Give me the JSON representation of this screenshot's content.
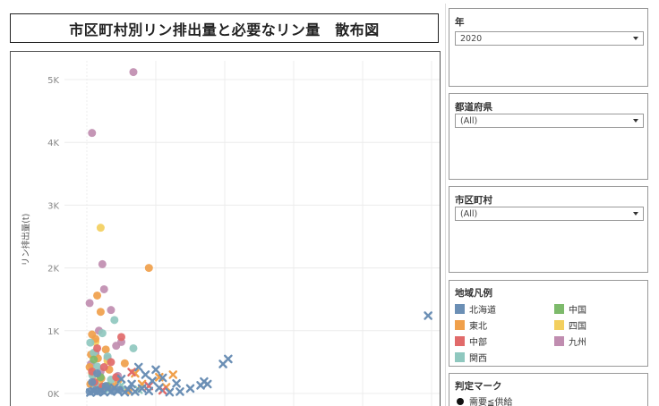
{
  "title": "市区町村別リン排出量と必要なリン量　散布図",
  "filters": {
    "year": {
      "label": "年",
      "value": "2020"
    },
    "prefecture": {
      "label": "都道府県",
      "value": "(All)"
    },
    "municipality": {
      "label": "市区町村",
      "value": "(All)"
    }
  },
  "legend": {
    "title": "地域凡例",
    "items": [
      {
        "label": "北海道",
        "color": "#6b8fb5"
      },
      {
        "label": "中国",
        "color": "#7dba6b"
      },
      {
        "label": "東北",
        "color": "#f0a04b"
      },
      {
        "label": "四国",
        "color": "#f3cf5e"
      },
      {
        "label": "中部",
        "color": "#e16a6a"
      },
      {
        "label": "九州",
        "color": "#c08db0"
      },
      {
        "label": "関西",
        "color": "#8fc8bf"
      }
    ]
  },
  "mark_legend": {
    "title": "判定マーク",
    "items": [
      {
        "label": "需要≦供給",
        "shape": "circle"
      }
    ]
  },
  "chart_data": {
    "type": "scatter",
    "ylabel": "リン排出量(t)",
    "ylim": [
      0,
      5300
    ],
    "yticks": [
      {
        "value": 0,
        "label": "0K"
      },
      {
        "value": 1000,
        "label": "1K"
      },
      {
        "value": 2000,
        "label": "2K"
      },
      {
        "value": 3000,
        "label": "3K"
      },
      {
        "value": 4000,
        "label": "4K"
      },
      {
        "value": 5000,
        "label": "5K"
      }
    ],
    "xlim": [
      0,
      100
    ],
    "xgrid": [
      0,
      20,
      40,
      60,
      80,
      100
    ],
    "series": [
      {
        "name": "九州",
        "color": "#c08db0",
        "points": [
          {
            "x": 13.5,
            "y": 5120,
            "m": "circle"
          },
          {
            "x": 1.5,
            "y": 4150,
            "m": "circle"
          },
          {
            "x": 4.5,
            "y": 2060,
            "m": "circle"
          },
          {
            "x": 5,
            "y": 1660,
            "m": "circle"
          },
          {
            "x": 0.8,
            "y": 1440,
            "m": "circle"
          },
          {
            "x": 7,
            "y": 1330,
            "m": "circle"
          },
          {
            "x": 3.5,
            "y": 1000,
            "m": "circle"
          },
          {
            "x": 10,
            "y": 820,
            "m": "circle"
          },
          {
            "x": 8.5,
            "y": 760,
            "m": "circle"
          },
          {
            "x": 2.5,
            "y": 640,
            "m": "circle"
          },
          {
            "x": 6,
            "y": 560,
            "m": "circle"
          },
          {
            "x": 1.2,
            "y": 470,
            "m": "circle"
          },
          {
            "x": 4,
            "y": 350,
            "m": "circle"
          },
          {
            "x": 9,
            "y": 280,
            "m": "circle"
          },
          {
            "x": 1.8,
            "y": 160,
            "m": "circle"
          },
          {
            "x": 3,
            "y": 90,
            "m": "circle"
          }
        ]
      },
      {
        "name": "四国",
        "color": "#f3cf5e",
        "points": [
          {
            "x": 4,
            "y": 2640,
            "m": "circle"
          },
          {
            "x": 2.5,
            "y": 820,
            "m": "circle"
          },
          {
            "x": 6,
            "y": 520,
            "m": "circle"
          },
          {
            "x": 1.5,
            "y": 320,
            "m": "circle"
          },
          {
            "x": 3.5,
            "y": 190,
            "m": "circle"
          },
          {
            "x": 5,
            "y": 80,
            "m": "circle"
          }
        ]
      },
      {
        "name": "東北",
        "color": "#f0a04b",
        "points": [
          {
            "x": 18,
            "y": 2000,
            "m": "circle"
          },
          {
            "x": 3,
            "y": 1560,
            "m": "circle"
          },
          {
            "x": 4,
            "y": 1300,
            "m": "circle"
          },
          {
            "x": 1.5,
            "y": 940,
            "m": "circle"
          },
          {
            "x": 2.5,
            "y": 870,
            "m": "circle"
          },
          {
            "x": 5.5,
            "y": 700,
            "m": "circle"
          },
          {
            "x": 1.2,
            "y": 620,
            "m": "circle"
          },
          {
            "x": 3.2,
            "y": 560,
            "m": "circle"
          },
          {
            "x": 11,
            "y": 480,
            "m": "circle"
          },
          {
            "x": 0.8,
            "y": 420,
            "m": "circle"
          },
          {
            "x": 6.5,
            "y": 380,
            "m": "circle"
          },
          {
            "x": 2,
            "y": 300,
            "m": "circle"
          },
          {
            "x": 4.2,
            "y": 240,
            "m": "circle"
          },
          {
            "x": 9,
            "y": 200,
            "m": "circle"
          },
          {
            "x": 1,
            "y": 150,
            "m": "circle"
          },
          {
            "x": 7.5,
            "y": 110,
            "m": "circle"
          },
          {
            "x": 3.8,
            "y": 70,
            "m": "circle"
          },
          {
            "x": 12,
            "y": 40,
            "m": "circle"
          },
          {
            "x": 14,
            "y": 320,
            "m": "cross"
          },
          {
            "x": 21,
            "y": 260,
            "m": "cross"
          },
          {
            "x": 25,
            "y": 300,
            "m": "cross"
          },
          {
            "x": 16,
            "y": 150,
            "m": "cross"
          },
          {
            "x": 23,
            "y": 100,
            "m": "cross"
          }
        ]
      },
      {
        "name": "関西",
        "color": "#8fc8bf",
        "points": [
          {
            "x": 8,
            "y": 1170,
            "m": "circle"
          },
          {
            "x": 1,
            "y": 810,
            "m": "circle"
          },
          {
            "x": 13.5,
            "y": 720,
            "m": "circle"
          },
          {
            "x": 4.5,
            "y": 960,
            "m": "circle"
          },
          {
            "x": 2,
            "y": 650,
            "m": "circle"
          },
          {
            "x": 6,
            "y": 590,
            "m": "circle"
          },
          {
            "x": 3,
            "y": 430,
            "m": "circle"
          },
          {
            "x": 1.6,
            "y": 290,
            "m": "circle"
          },
          {
            "x": 7,
            "y": 220,
            "m": "circle"
          },
          {
            "x": 2.6,
            "y": 140,
            "m": "circle"
          },
          {
            "x": 5.2,
            "y": 60,
            "m": "circle"
          },
          {
            "x": 10,
            "y": 130,
            "m": "cross"
          },
          {
            "x": 15,
            "y": 60,
            "m": "cross"
          }
        ]
      },
      {
        "name": "中部",
        "color": "#e16a6a",
        "points": [
          {
            "x": 10,
            "y": 900,
            "m": "circle"
          },
          {
            "x": 3,
            "y": 720,
            "m": "circle"
          },
          {
            "x": 7,
            "y": 500,
            "m": "circle"
          },
          {
            "x": 5,
            "y": 420,
            "m": "circle"
          },
          {
            "x": 1.5,
            "y": 350,
            "m": "circle"
          },
          {
            "x": 8.5,
            "y": 260,
            "m": "circle"
          },
          {
            "x": 2.2,
            "y": 180,
            "m": "circle"
          },
          {
            "x": 4.5,
            "y": 110,
            "m": "circle"
          },
          {
            "x": 13,
            "y": 340,
            "m": "cross"
          },
          {
            "x": 18,
            "y": 120,
            "m": "cross"
          },
          {
            "x": 22,
            "y": 50,
            "m": "cross"
          }
        ]
      },
      {
        "name": "中国",
        "color": "#7dba6b",
        "points": [
          {
            "x": 2,
            "y": 540,
            "m": "circle"
          },
          {
            "x": 4,
            "y": 260,
            "m": "circle"
          },
          {
            "x": 6,
            "y": 120,
            "m": "circle"
          }
        ]
      },
      {
        "name": "北海道",
        "color": "#6b8fb5",
        "points": [
          {
            "x": 99,
            "y": 1240,
            "m": "cross"
          },
          {
            "x": 41,
            "y": 550,
            "m": "cross"
          },
          {
            "x": 39.5,
            "y": 470,
            "m": "cross"
          },
          {
            "x": 34,
            "y": 190,
            "m": "cross"
          },
          {
            "x": 35,
            "y": 150,
            "m": "cross"
          },
          {
            "x": 33,
            "y": 130,
            "m": "cross"
          },
          {
            "x": 30,
            "y": 80,
            "m": "cross"
          },
          {
            "x": 27,
            "y": 30,
            "m": "cross"
          },
          {
            "x": 24,
            "y": 20,
            "m": "cross"
          },
          {
            "x": 20,
            "y": 380,
            "m": "cross"
          },
          {
            "x": 22,
            "y": 250,
            "m": "cross"
          },
          {
            "x": 19,
            "y": 200,
            "m": "cross"
          },
          {
            "x": 17,
            "y": 300,
            "m": "cross"
          },
          {
            "x": 15,
            "y": 420,
            "m": "cross"
          },
          {
            "x": 16,
            "y": 80,
            "m": "cross"
          },
          {
            "x": 13,
            "y": 150,
            "m": "cross"
          },
          {
            "x": 12,
            "y": 60,
            "m": "cross"
          },
          {
            "x": 10,
            "y": 230,
            "m": "cross"
          },
          {
            "x": 9,
            "y": 40,
            "m": "cross"
          },
          {
            "x": 8,
            "y": 90,
            "m": "cross"
          },
          {
            "x": 7,
            "y": 30,
            "m": "cross"
          },
          {
            "x": 6,
            "y": 70,
            "m": "cross"
          },
          {
            "x": 5,
            "y": 20,
            "m": "cross"
          },
          {
            "x": 4,
            "y": 50,
            "m": "cross"
          },
          {
            "x": 3,
            "y": 20,
            "m": "cross"
          },
          {
            "x": 2,
            "y": 40,
            "m": "cross"
          },
          {
            "x": 1,
            "y": 15,
            "m": "cross"
          },
          {
            "x": 11,
            "y": 20,
            "m": "cross"
          },
          {
            "x": 14,
            "y": 30,
            "m": "cross"
          },
          {
            "x": 18,
            "y": 40,
            "m": "cross"
          },
          {
            "x": 21,
            "y": 90,
            "m": "cross"
          },
          {
            "x": 26,
            "y": 160,
            "m": "cross"
          },
          {
            "x": 3,
            "y": 320,
            "m": "circle"
          },
          {
            "x": 1.5,
            "y": 180,
            "m": "circle"
          },
          {
            "x": 5.5,
            "y": 120,
            "m": "circle"
          },
          {
            "x": 2.5,
            "y": 50,
            "m": "circle"
          },
          {
            "x": 7.5,
            "y": 40,
            "m": "circle"
          },
          {
            "x": 9.5,
            "y": 60,
            "m": "circle"
          },
          {
            "x": 0.8,
            "y": 30,
            "m": "circle"
          },
          {
            "x": 4,
            "y": 25,
            "m": "circle"
          }
        ]
      }
    ]
  }
}
